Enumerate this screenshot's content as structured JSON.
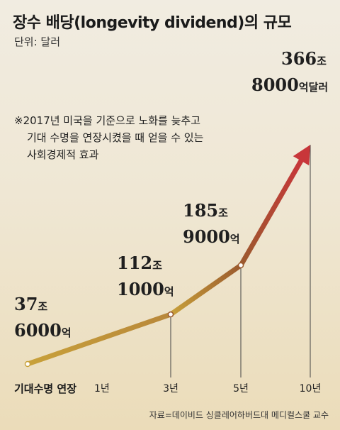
{
  "chart_data": {
    "type": "line",
    "title": "장수 배당(longevity dividend)의 규모",
    "unit_label": "단위: 달러",
    "note_lines": [
      "※2017년 미국을 기준으로 노화를 늦추고",
      "기대 수명을 연장시켰을 때 얻을 수 있는",
      "사회경제적 효과"
    ],
    "xlabel": "기대수명 연장",
    "categories": [
      "1년",
      "3년",
      "5년",
      "10년"
    ],
    "x": [
      1,
      3,
      5,
      10
    ],
    "values": [
      376000,
      1121000,
      1859000,
      3668000
    ],
    "value_unit": "억달러",
    "data_labels": [
      {
        "line1_num": "37",
        "line1_unit": "조",
        "line2_num": "6000",
        "line2_unit": "억"
      },
      {
        "line1_num": "112",
        "line1_unit": "조",
        "line2_num": "1000",
        "line2_unit": "억"
      },
      {
        "line1_num": "185",
        "line1_unit": "조",
        "line2_num": "9000",
        "line2_unit": "억"
      },
      {
        "line1_num": "366",
        "line1_unit": "조",
        "line2_num": "8000",
        "line2_unit": "억달러"
      }
    ],
    "grid": false,
    "colors": {
      "segment_start": "#c8a13a",
      "segment_mid": "#9b5a2e",
      "segment_end": "#c8363a",
      "marker": "#ffffff",
      "drop_line": "#444444"
    },
    "source": "자료=데이비드 싱클레어하버드대 메디컬스쿨 교수"
  }
}
